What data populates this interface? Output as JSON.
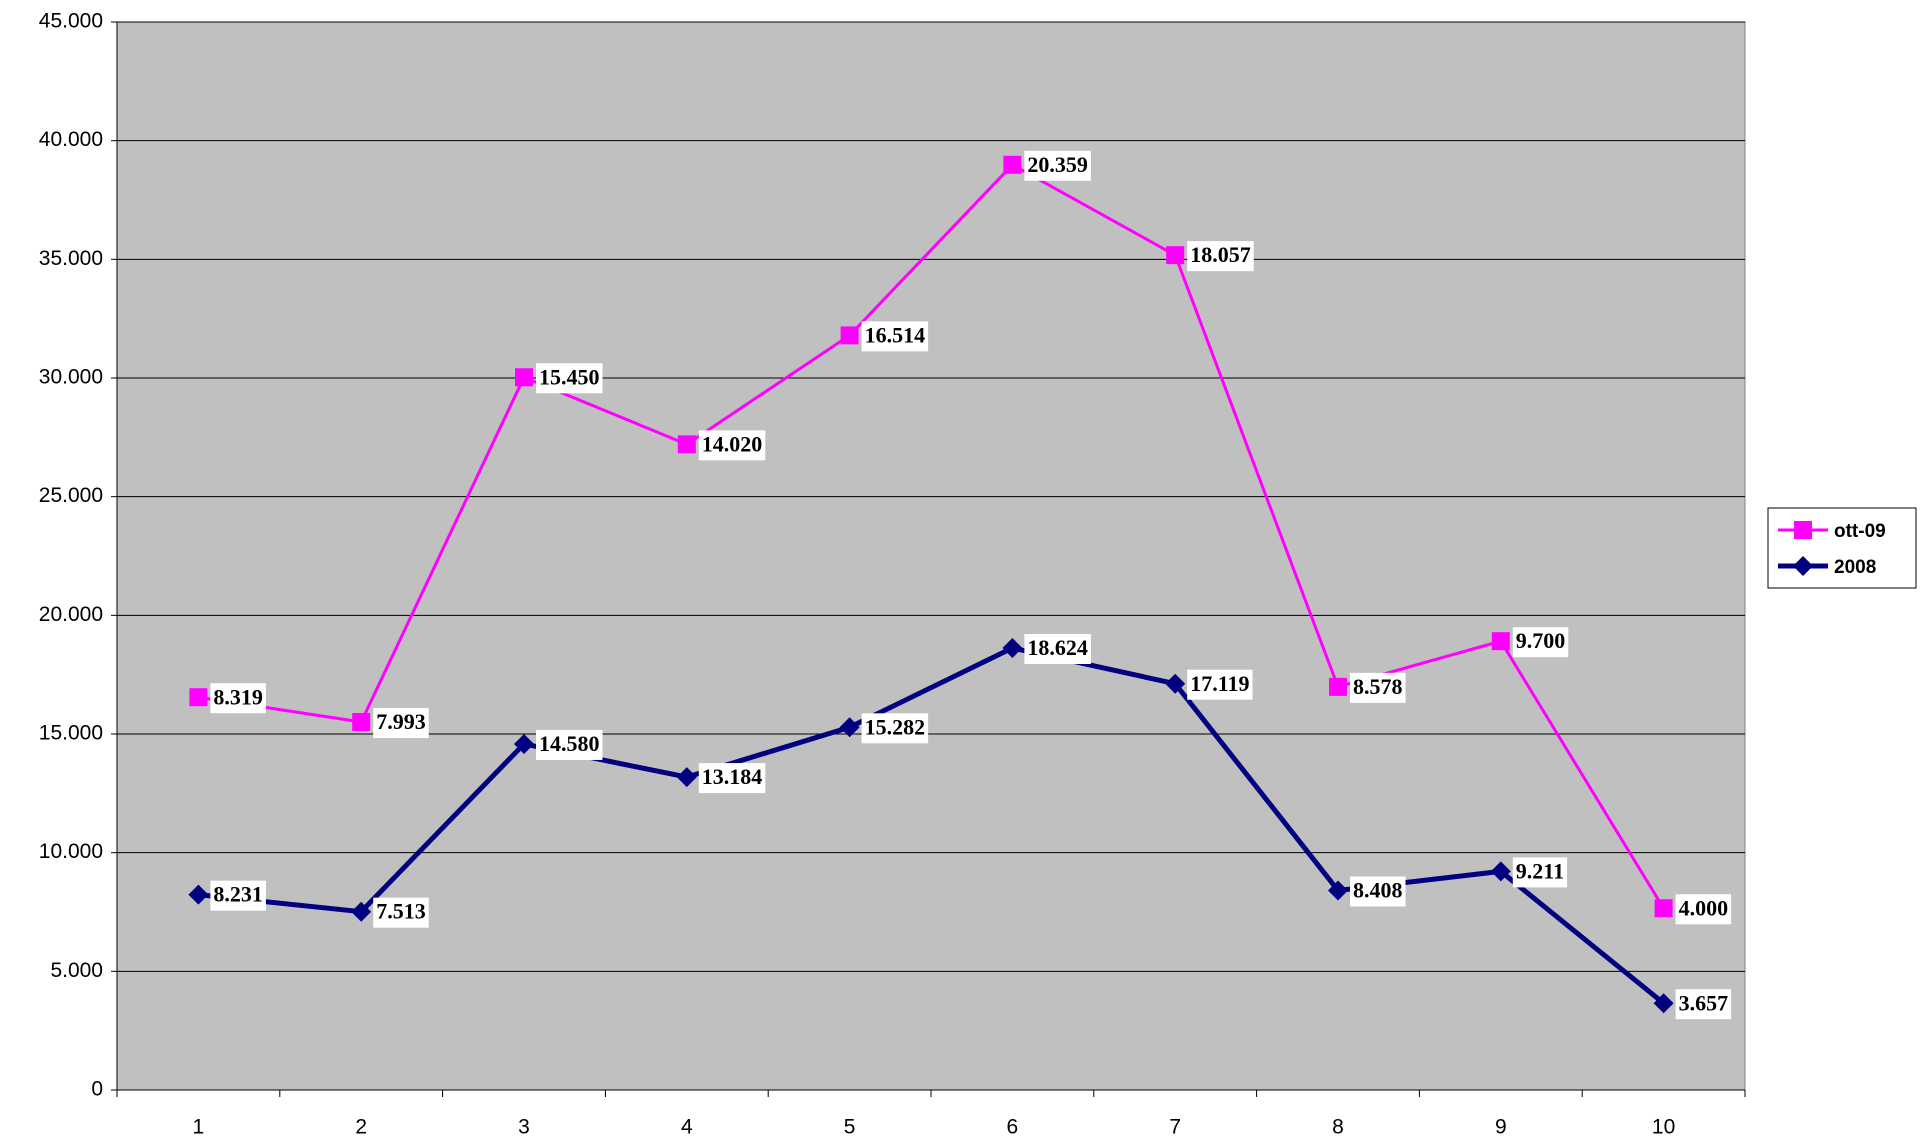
{
  "chart_data": {
    "type": "line",
    "stacked": true,
    "categories": [
      "1",
      "2",
      "3",
      "4",
      "5",
      "6",
      "7",
      "8",
      "9",
      "10"
    ],
    "series": [
      {
        "name": "ott-09",
        "color": "#ff00ff",
        "marker": "square",
        "values": [
          8319,
          7993,
          15450,
          14020,
          16514,
          20359,
          18057,
          8578,
          9700,
          4000
        ],
        "value_labels": [
          "8.319",
          "7.993",
          "15.450",
          "14.020",
          "16.514",
          "20.359",
          "18.057",
          "8.578",
          "9.700",
          "4.000"
        ]
      },
      {
        "name": "2008",
        "color": "#000080",
        "marker": "diamond",
        "values": [
          8231,
          7513,
          14580,
          13184,
          15282,
          18624,
          17119,
          8408,
          9211,
          3657
        ],
        "value_labels": [
          "8.231",
          "7.513",
          "14.580",
          "13.184",
          "15.282",
          "18.624",
          "17.119",
          "8.408",
          "9.211",
          "3.657"
        ]
      }
    ],
    "ylim": [
      0,
      45000
    ],
    "yticks": [
      0,
      {
        "value": 5000,
        "label": "5.000"
      },
      {
        "value": 10000,
        "label": "10.000"
      },
      {
        "value": 15000,
        "label": "15.000"
      },
      {
        "value": 20000,
        "label": "20.000"
      },
      {
        "value": 25000,
        "label": "25.000"
      },
      {
        "value": 30000,
        "label": "30.000"
      },
      {
        "value": 35000,
        "label": "35.000"
      },
      {
        "value": 40000,
        "label": "40.000"
      },
      {
        "value": 45000,
        "label": "45.000"
      }
    ],
    "grid": true,
    "legend": "right",
    "plot_background": "#c0c0c0"
  }
}
